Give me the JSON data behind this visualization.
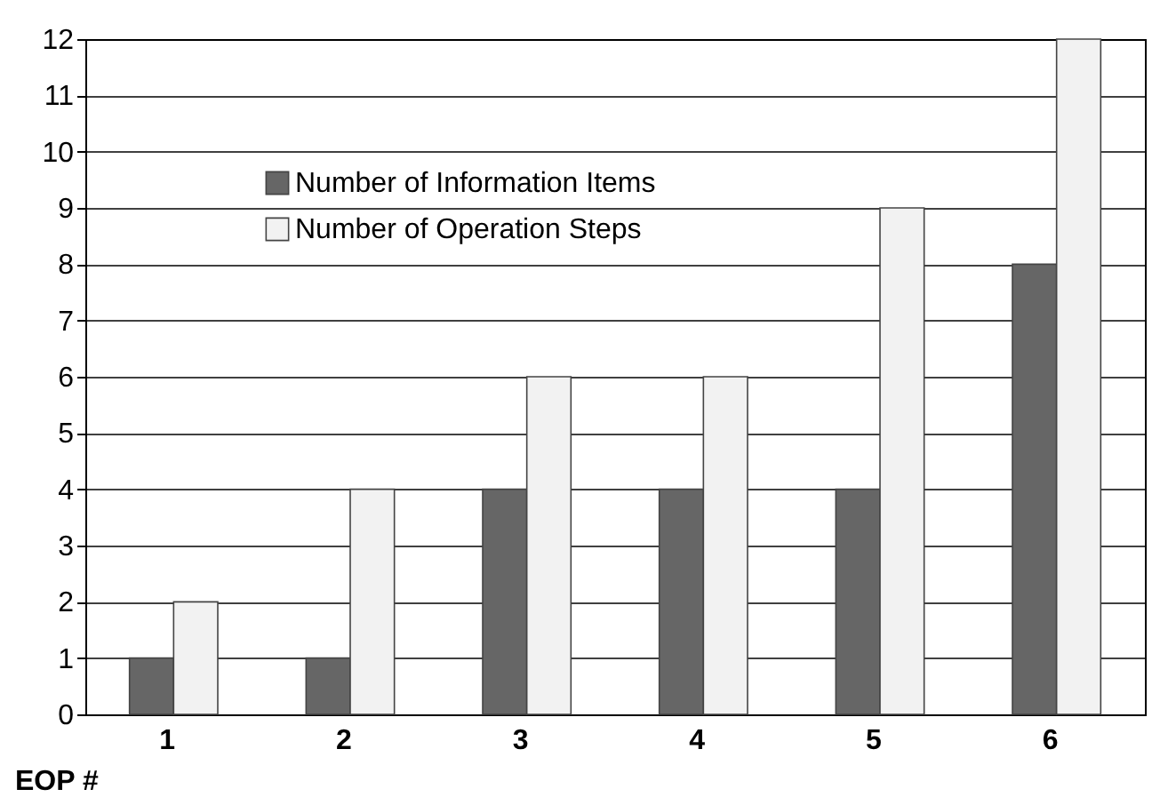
{
  "chart_data": {
    "type": "bar",
    "xlabel": "EOP #",
    "categories": [
      "1",
      "2",
      "3",
      "4",
      "5",
      "6"
    ],
    "series": [
      {
        "name": "Number of Information Items",
        "color": "#666666",
        "values": [
          1,
          1,
          4,
          4,
          4,
          8
        ]
      },
      {
        "name": "Number of Operation Steps",
        "color": "#f2f2f2",
        "values": [
          2,
          4,
          6,
          6,
          9,
          12
        ]
      }
    ],
    "ylim": [
      0,
      12
    ],
    "yticks": [
      0,
      1,
      2,
      3,
      4,
      5,
      6,
      7,
      8,
      9,
      10,
      11,
      12
    ],
    "grid": "y",
    "legend": "top left"
  }
}
